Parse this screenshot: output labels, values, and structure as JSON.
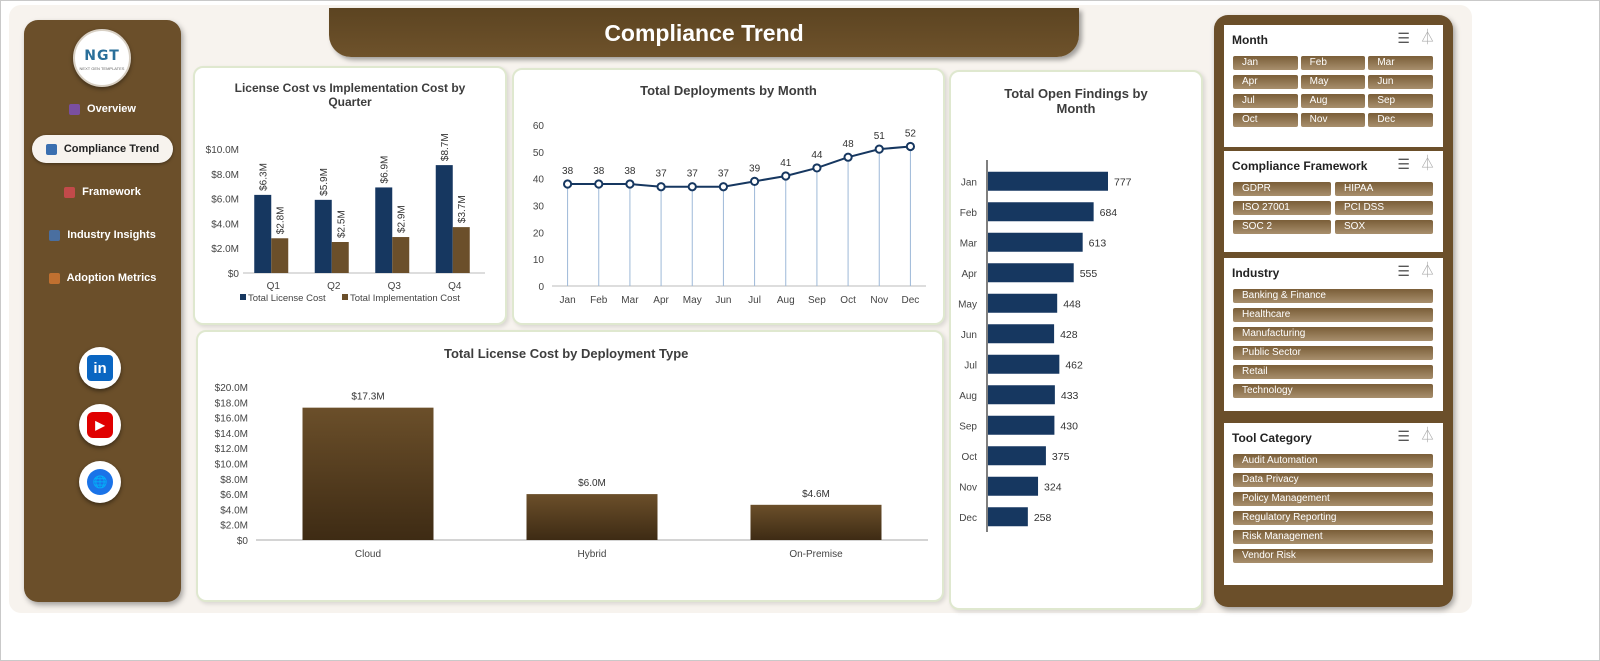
{
  "title": "Compliance Trend",
  "logo": {
    "text": "NGT",
    "subtitle": "NEXT GEN TEMPLATES"
  },
  "nav": [
    {
      "label": "Overview",
      "icon": "bar-chart-icon",
      "active": false
    },
    {
      "label": "Compliance Trend",
      "icon": "trend-chart-icon",
      "active": true
    },
    {
      "label": "Framework",
      "icon": "clipboard-icon",
      "active": false
    },
    {
      "label": "Industry Insights",
      "icon": "cloud-icon",
      "active": false
    },
    {
      "label": "Adoption Metrics",
      "icon": "target-icon",
      "active": false
    }
  ],
  "social": [
    {
      "name": "linkedin-icon",
      "glyph": "in",
      "color": "#0a66c2"
    },
    {
      "name": "youtube-icon",
      "glyph": "▶",
      "color": "#e00000"
    },
    {
      "name": "globe-icon",
      "glyph": "🌐",
      "color": "#1a73e8"
    }
  ],
  "colors": {
    "brown": "#6b4f2a",
    "navy": "#163760",
    "cost_brown": "#6b4f2a"
  },
  "charts": {
    "license_vs_impl": {
      "title": "License Cost vs Implementation Cost by Quarter",
      "yticks": [
        "$10.0M",
        "$8.0M",
        "$6.0M",
        "$4.0M",
        "$2.0M",
        "$0"
      ],
      "legend": [
        "Total License Cost",
        "Total Implementation Cost"
      ]
    },
    "deployments": {
      "title": "Total Deployments by Month",
      "yticks": [
        "60",
        "50",
        "40",
        "30",
        "20",
        "10",
        "0"
      ]
    },
    "license_by_type": {
      "title": "Total License Cost by Deployment Type",
      "yticks": [
        "$20.0M",
        "$18.0M",
        "$16.0M",
        "$14.0M",
        "$12.0M",
        "$10.0M",
        "$8.0M",
        "$6.0M",
        "$4.0M",
        "$2.0M",
        "$0"
      ]
    },
    "open_findings": {
      "title": "Total Open Findings by Month"
    }
  },
  "chart_data": [
    {
      "type": "bar",
      "title": "License Cost vs Implementation Cost by Quarter",
      "categories": [
        "Q1",
        "Q2",
        "Q3",
        "Q4"
      ],
      "series": [
        {
          "name": "Total License Cost",
          "values": [
            6.3,
            5.9,
            6.9,
            8.7
          ],
          "labels": [
            "$6.3M",
            "$5.9M",
            "$6.9M",
            "$8.7M"
          ],
          "color": "#163760"
        },
        {
          "name": "Total Implementation Cost",
          "values": [
            2.8,
            2.5,
            2.9,
            3.7
          ],
          "labels": [
            "$2.8M",
            "$2.5M",
            "$2.9M",
            "$3.7M"
          ],
          "color": "#6b4f2a"
        }
      ],
      "ylim": [
        0,
        10
      ],
      "legend": "bottom"
    },
    {
      "type": "line",
      "title": "Total Deployments by Month",
      "categories": [
        "Jan",
        "Feb",
        "Mar",
        "Apr",
        "May",
        "Jun",
        "Jul",
        "Aug",
        "Sep",
        "Oct",
        "Nov",
        "Dec"
      ],
      "values": [
        38,
        38,
        38,
        37,
        37,
        37,
        39,
        41,
        44,
        48,
        51,
        52
      ],
      "ylim": [
        0,
        60
      ]
    },
    {
      "type": "bar",
      "title": "Total License Cost by Deployment Type",
      "categories": [
        "Cloud",
        "Hybrid",
        "On-Premise"
      ],
      "values": [
        17.3,
        6.0,
        4.6
      ],
      "labels": [
        "$17.3M",
        "$6.0M",
        "$4.6M"
      ],
      "ylim": [
        0,
        20
      ]
    },
    {
      "type": "bar",
      "orientation": "horizontal",
      "title": "Total Open Findings by Month",
      "categories": [
        "Jan",
        "Feb",
        "Mar",
        "Apr",
        "May",
        "Jun",
        "Jul",
        "Aug",
        "Sep",
        "Oct",
        "Nov",
        "Dec"
      ],
      "values": [
        777,
        684,
        613,
        555,
        448,
        428,
        462,
        433,
        430,
        375,
        324,
        258
      ]
    }
  ],
  "slicers": [
    {
      "title": "Month",
      "columns": 3,
      "items": [
        "Jan",
        "Feb",
        "Mar",
        "Apr",
        "May",
        "Jun",
        "Jul",
        "Aug",
        "Sep",
        "Oct",
        "Nov",
        "Dec"
      ]
    },
    {
      "title": "Compliance Framework",
      "columns": 2,
      "items": [
        "GDPR",
        "HIPAA",
        "ISO 27001",
        "PCI DSS",
        "SOC 2",
        "SOX"
      ]
    },
    {
      "title": "Industry",
      "columns": 1,
      "items": [
        "Banking & Finance",
        "Healthcare",
        "Manufacturing",
        "Public Sector",
        "Retail",
        "Technology"
      ]
    },
    {
      "title": "Tool Category",
      "columns": 1,
      "items": [
        "Audit Automation",
        "Data Privacy",
        "Policy Management",
        "Regulatory Reporting",
        "Risk Management",
        "Vendor Risk"
      ]
    }
  ]
}
